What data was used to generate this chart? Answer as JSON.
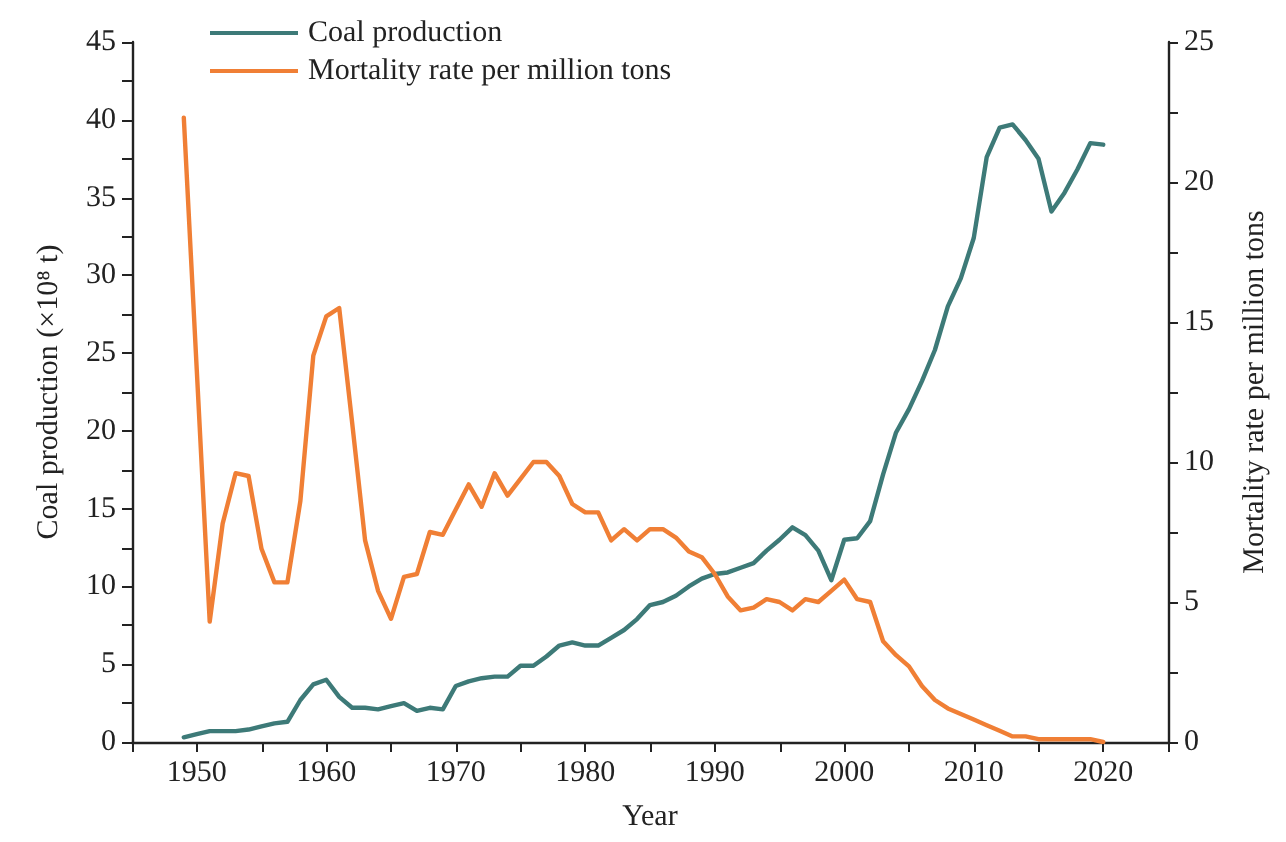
{
  "chart_data": {
    "type": "line",
    "xlabel": "Year",
    "ylabel": "Coal production (×10⁸ t)",
    "y2label": "Mortality rate per million tons",
    "x": [
      1949,
      1950,
      1951,
      1952,
      1953,
      1954,
      1955,
      1956,
      1957,
      1958,
      1959,
      1960,
      1961,
      1962,
      1963,
      1964,
      1965,
      1966,
      1967,
      1968,
      1969,
      1970,
      1971,
      1972,
      1973,
      1974,
      1975,
      1976,
      1977,
      1978,
      1979,
      1980,
      1981,
      1982,
      1983,
      1984,
      1985,
      1986,
      1987,
      1988,
      1989,
      1990,
      1991,
      1992,
      1993,
      1994,
      1995,
      1996,
      1997,
      1998,
      1999,
      2000,
      2001,
      2002,
      2003,
      2004,
      2005,
      2006,
      2007,
      2008,
      2009,
      2010,
      2011,
      2012,
      2013,
      2014,
      2015,
      2016,
      2017,
      2018,
      2019,
      2020
    ],
    "series": [
      {
        "name": "Coal production",
        "color": "#3d7a78",
        "values": [
          0.3,
          0.5,
          0.7,
          0.7,
          0.7,
          0.8,
          1.0,
          1.2,
          1.3,
          2.7,
          3.7,
          4.0,
          2.9,
          2.2,
          2.2,
          2.1,
          2.3,
          2.5,
          2.0,
          2.2,
          2.1,
          3.6,
          3.9,
          4.1,
          4.2,
          4.2,
          4.9,
          4.9,
          5.5,
          6.2,
          6.4,
          6.2,
          6.2,
          6.7,
          7.2,
          7.9,
          8.8,
          9.0,
          9.4,
          10.0,
          10.5,
          10.8,
          10.9,
          11.2,
          11.5,
          12.3,
          13.0,
          13.8,
          13.3,
          12.3,
          10.4,
          13.0,
          13.1,
          14.2,
          17.2,
          19.9,
          21.4,
          23.2,
          25.2,
          28.0,
          29.8,
          32.4,
          37.6,
          39.5,
          39.7,
          38.7,
          37.5,
          34.1,
          35.3,
          36.8,
          38.5,
          38.4
        ]
      },
      {
        "name": "Mortality rate per million tons",
        "color": "#f07f35",
        "axis": "y2",
        "values": [
          22.3,
          13.3,
          4.3,
          7.8,
          9.6,
          9.5,
          6.9,
          5.7,
          5.7,
          8.6,
          13.8,
          15.2,
          15.5,
          11.4,
          7.2,
          5.4,
          4.4,
          5.9,
          6.0,
          7.5,
          7.4,
          8.3,
          9.2,
          8.4,
          9.6,
          8.8,
          9.4,
          10.0,
          10.0,
          9.5,
          8.5,
          8.2,
          8.2,
          7.2,
          7.6,
          7.2,
          7.6,
          7.6,
          7.3,
          6.8,
          6.6,
          6.0,
          5.2,
          4.7,
          4.8,
          5.1,
          5.0,
          4.7,
          5.1,
          5.0,
          5.4,
          5.8,
          5.1,
          5.0,
          3.6,
          3.1,
          2.7,
          2.0,
          1.5,
          1.2,
          1.0,
          0.8,
          0.6,
          0.4,
          0.2,
          0.2,
          0.1,
          0.1,
          0.1,
          0.1,
          0.1,
          0.0
        ]
      }
    ],
    "xlim": [
      1945,
      2025
    ],
    "xticks": [
      {
        "value": 1945,
        "label": null
      },
      1950,
      {
        "value": 1955,
        "label": null
      },
      1960,
      {
        "value": 1965,
        "label": null
      },
      1970,
      {
        "value": 1975,
        "label": null
      },
      1980,
      {
        "value": 1985,
        "label": null
      },
      1990,
      {
        "value": 1995,
        "label": null
      },
      2000,
      {
        "value": 2005,
        "label": null
      },
      2010,
      {
        "value": 2015,
        "label": null
      },
      2020,
      {
        "value": 2025,
        "label": null
      }
    ],
    "ylim": [
      0,
      45
    ],
    "yticks": [
      0,
      {
        "value": 2.5,
        "label": null
      },
      5,
      {
        "value": 7.5,
        "label": null
      },
      10,
      {
        "value": 12.5,
        "label": null
      },
      15,
      {
        "value": 17.5,
        "label": null
      },
      20,
      {
        "value": 22.5,
        "label": null
      },
      25,
      {
        "value": 27.5,
        "label": null
      },
      30,
      {
        "value": 32.5,
        "label": null
      },
      35,
      {
        "value": 37.5,
        "label": null
      },
      40,
      {
        "value": 42.5,
        "label": null
      },
      45
    ],
    "y2lim": [
      0,
      25
    ],
    "y2ticks": [
      0,
      {
        "value": 2.5,
        "label": null
      },
      5,
      {
        "value": 7.5,
        "label": null
      },
      10,
      {
        "value": 12.5,
        "label": null
      },
      15,
      {
        "value": 17.5,
        "label": null
      },
      20,
      {
        "value": 22.5,
        "label": null
      },
      25
    ],
    "grid": false,
    "legend": "top left",
    "marker": "none",
    "line_style": "solid"
  }
}
